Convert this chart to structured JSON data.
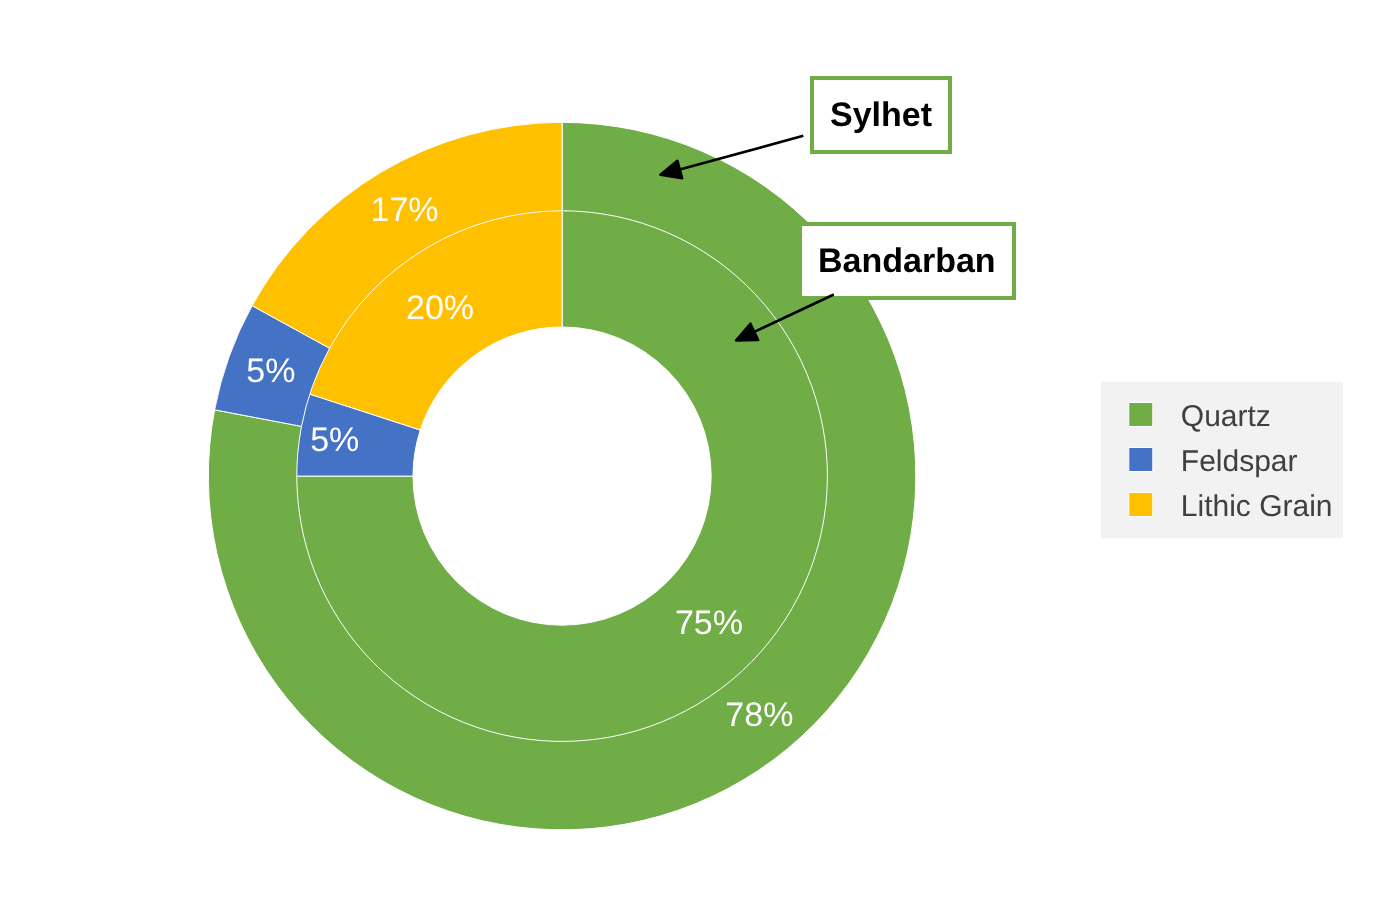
{
  "chart_data": {
    "type": "donut",
    "categories": [
      "Quartz",
      "Feldspar",
      "Lithic Grain"
    ],
    "colors": [
      "#70ad47",
      "#4472c4",
      "#ffc000"
    ],
    "series": [
      {
        "name": "Bandarban",
        "values": [
          75,
          5,
          20
        ],
        "value_labels": [
          "75%",
          "5%",
          "20%"
        ]
      },
      {
        "name": "Sylhet",
        "values": [
          78,
          5,
          17
        ],
        "value_labels": [
          "78%",
          "5%",
          "17%"
        ]
      }
    ],
    "legend": "right"
  }
}
